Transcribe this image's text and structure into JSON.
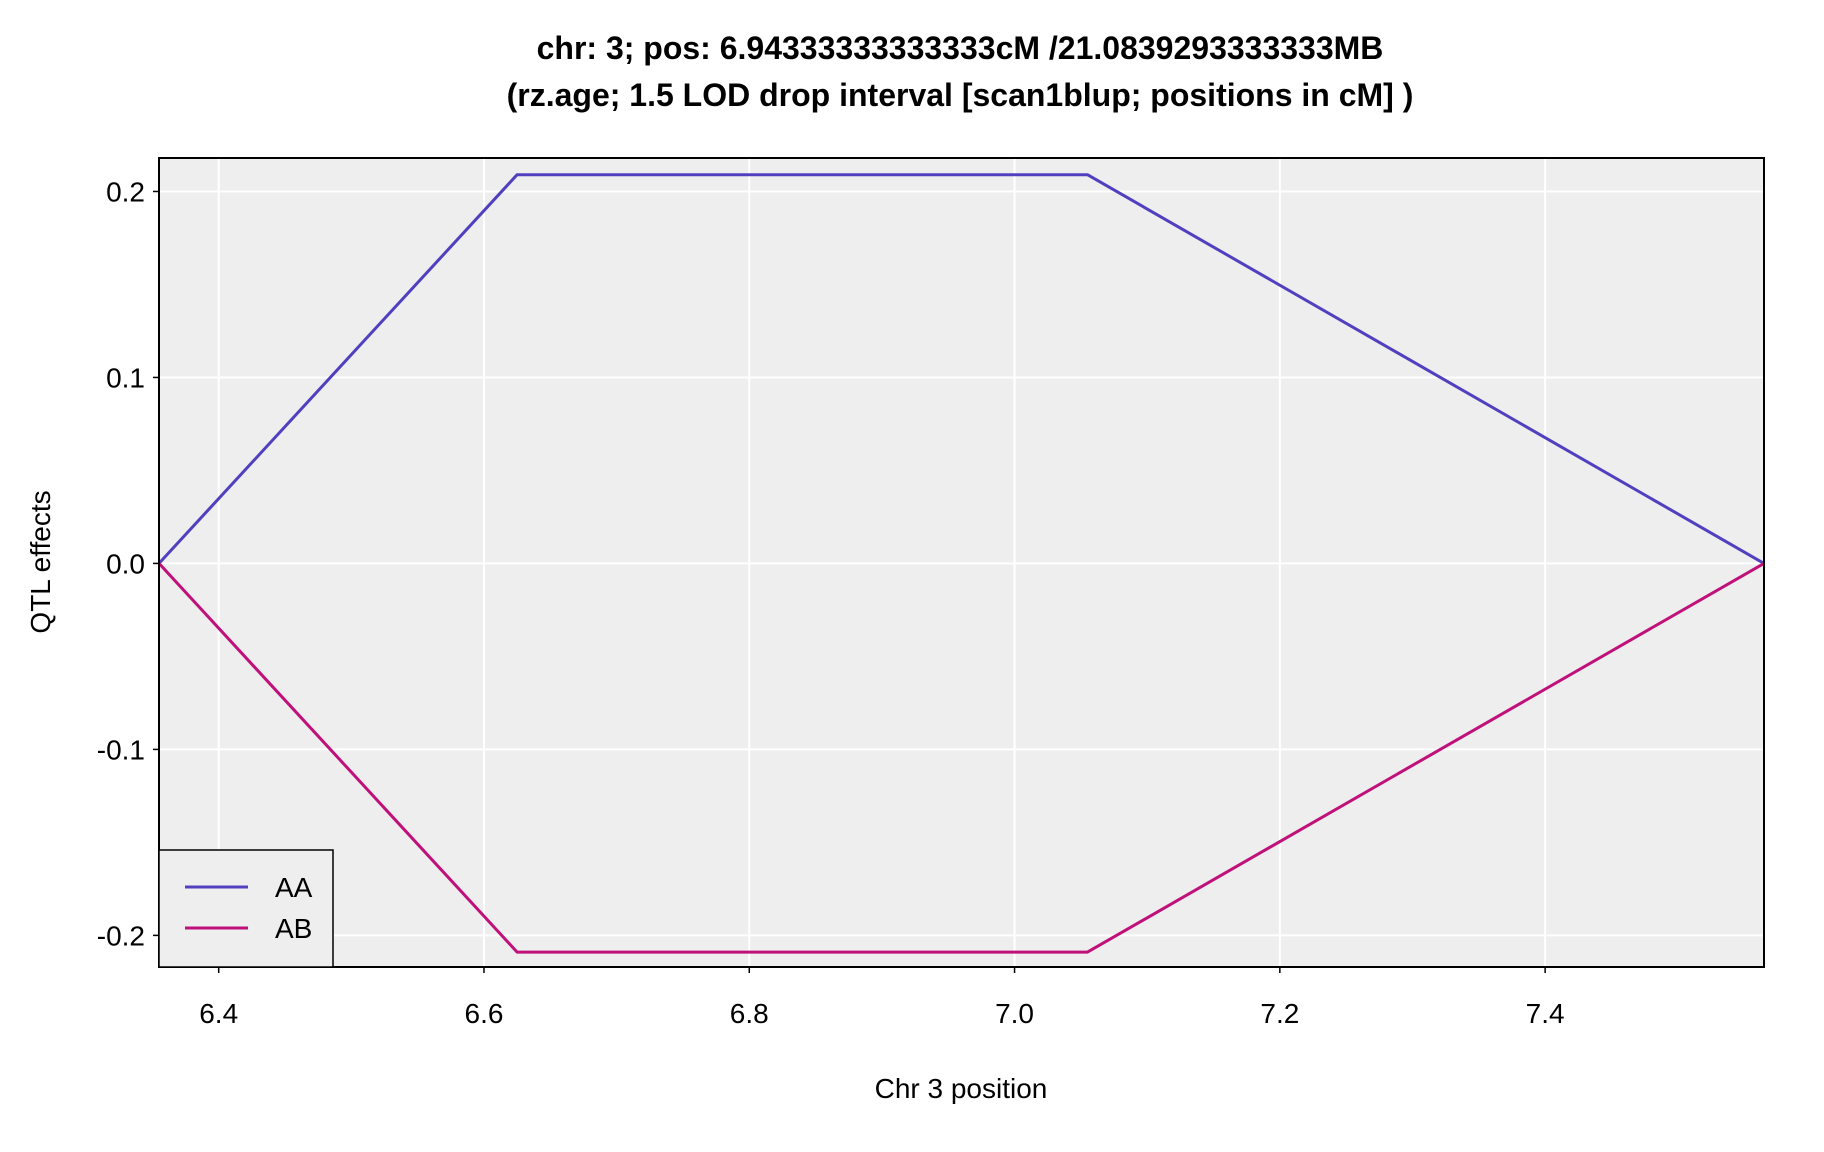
{
  "chart_data": {
    "type": "line",
    "title_line1": "chr: 3; pos: 6.94333333333333cM /21.0839293333333MB",
    "title_line2": "(rz.age; 1.5 LOD drop interval [scan1blup; positions in cM] )",
    "xlabel": "Chr 3 position",
    "ylabel": "QTL effects",
    "xlim": [
      6.355,
      7.565
    ],
    "ylim": [
      -0.217,
      0.218
    ],
    "xticks": [
      6.4,
      6.6,
      6.8,
      7.0,
      7.2,
      7.4
    ],
    "xtick_labels": [
      "6.4",
      "6.6",
      "6.8",
      "7.0",
      "7.2",
      "7.4"
    ],
    "yticks": [
      -0.2,
      -0.1,
      0.0,
      0.1,
      0.2
    ],
    "ytick_labels": [
      "-0.2",
      "-0.1",
      "0.0",
      "0.1",
      "0.2"
    ],
    "grid": true,
    "legend_position": "bottom-left",
    "series": [
      {
        "name": "AA",
        "color": "#5040c0",
        "x": [
          6.355,
          6.625,
          7.055,
          7.565
        ],
        "y": [
          0.0,
          0.209,
          0.209,
          0.0
        ]
      },
      {
        "name": "AB",
        "color": "#c0107a",
        "x": [
          6.355,
          6.625,
          7.055,
          7.565
        ],
        "y": [
          0.0,
          -0.209,
          -0.209,
          0.0
        ]
      }
    ]
  }
}
